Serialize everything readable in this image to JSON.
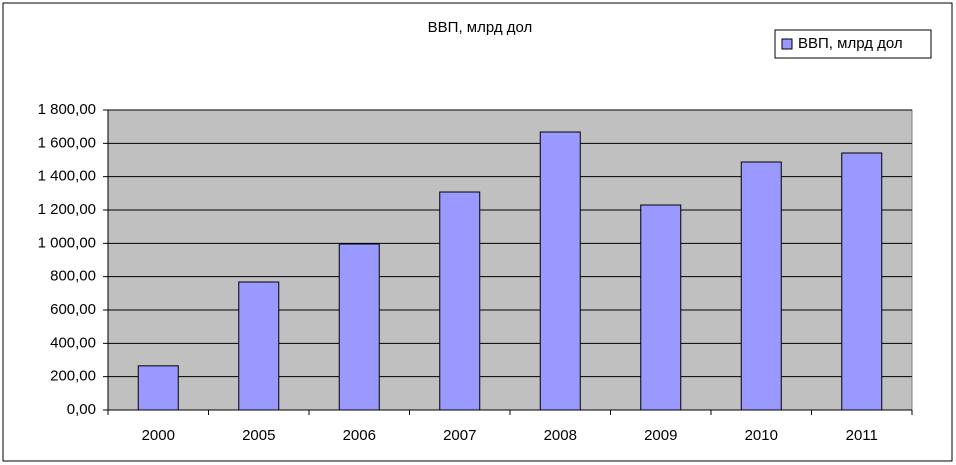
{
  "chart_data": {
    "type": "bar",
    "title": "ВВП, млрд дол",
    "categories": [
      "2000",
      "2005",
      "2006",
      "2007",
      "2008",
      "2009",
      "2010",
      "2011"
    ],
    "series": [
      {
        "name": "ВВП, млрд дол",
        "color": "#9999ff",
        "values": [
          265,
          768,
          996,
          1308,
          1668,
          1230,
          1488,
          1542
        ]
      }
    ],
    "ylim": [
      0,
      1800
    ],
    "yticks": [
      {
        "value": 0,
        "label": "0,00"
      },
      {
        "value": 200,
        "label": "200,00"
      },
      {
        "value": 400,
        "label": "400,00"
      },
      {
        "value": 600,
        "label": "600,00"
      },
      {
        "value": 800,
        "label": "800,00"
      },
      {
        "value": 1000,
        "label": "1 000,00"
      },
      {
        "value": 1200,
        "label": "1 200,00"
      },
      {
        "value": 1400,
        "label": "1 400,00"
      },
      {
        "value": 1600,
        "label": "1 600,00"
      },
      {
        "value": 1800,
        "label": "1 800,00"
      }
    ],
    "grid": true,
    "legend": "top-right",
    "plot_background": "#c0c0c0"
  }
}
